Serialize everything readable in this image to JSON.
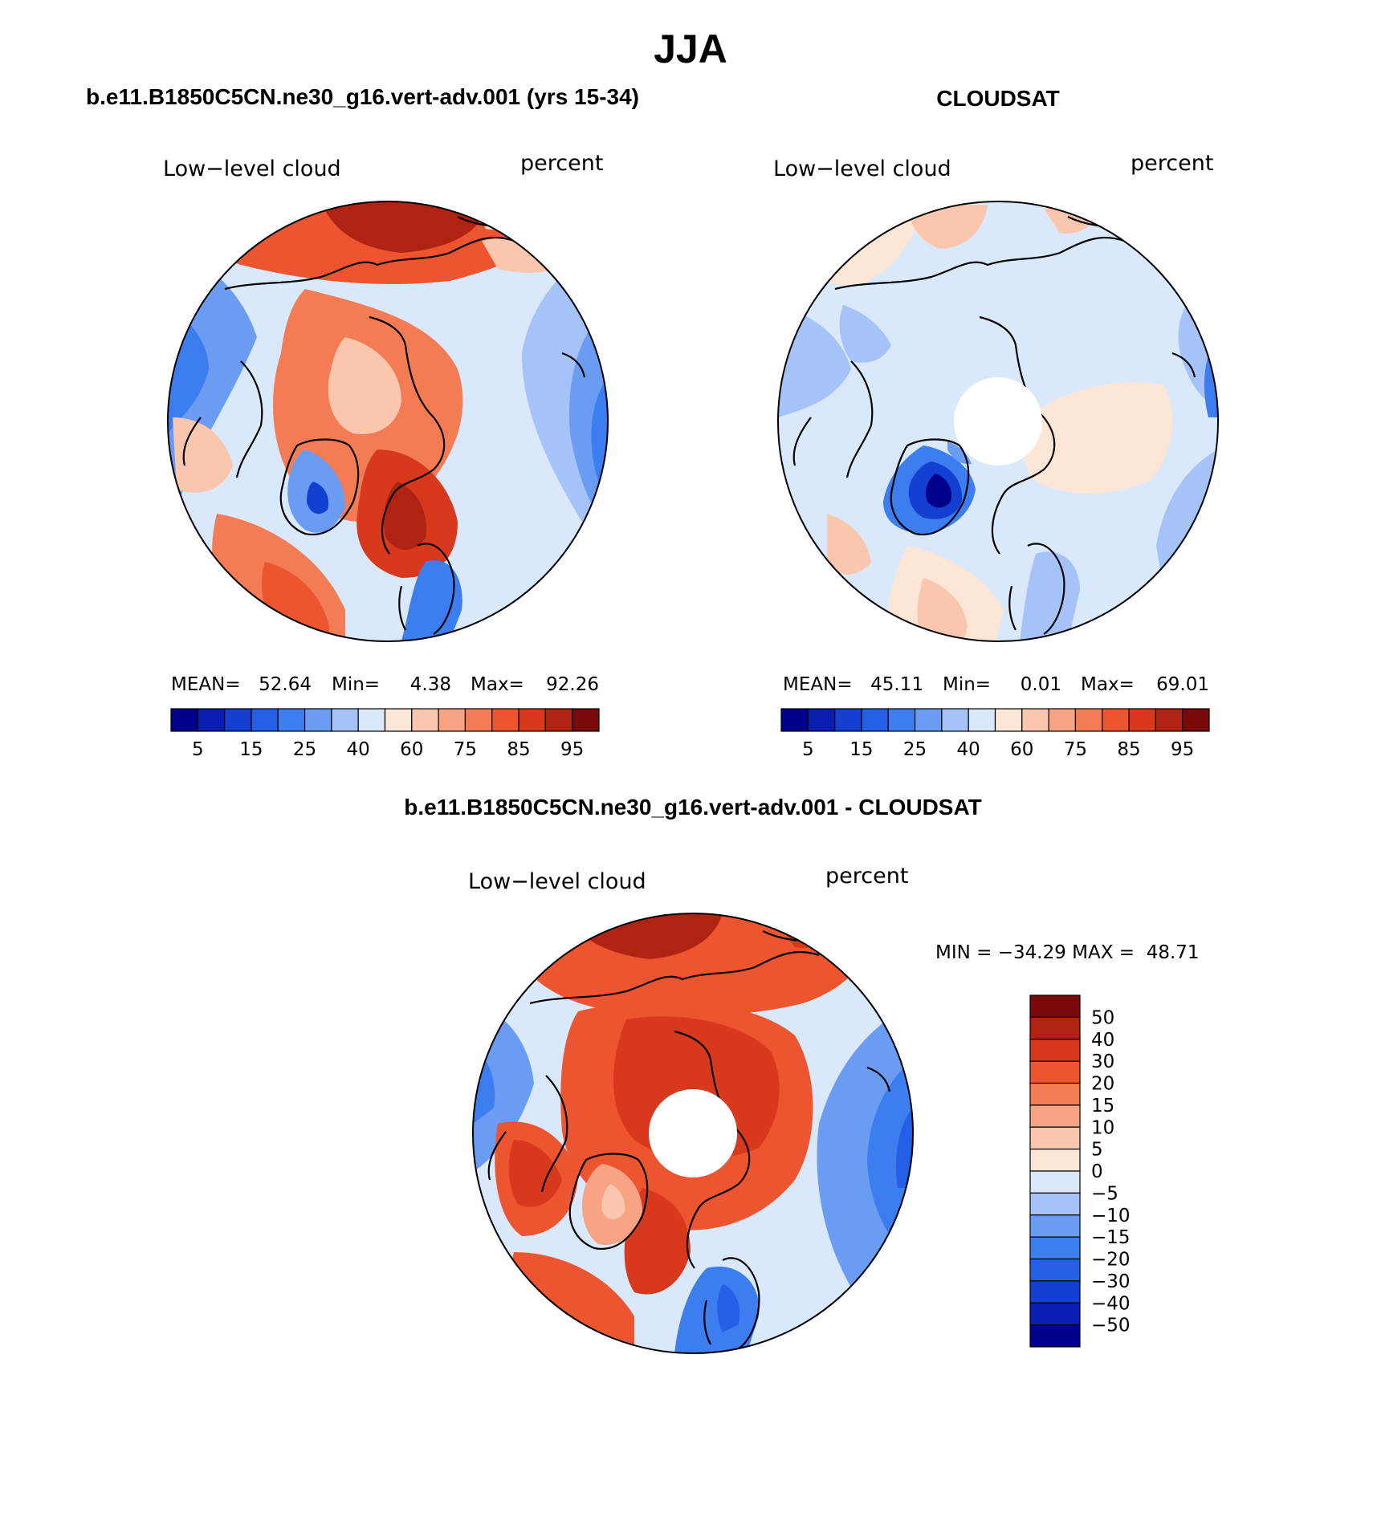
{
  "title": "JJA",
  "panels": [
    {
      "id": "model",
      "heading": "b.e11.B1850C5CN.ne30_g16.vert-adv.001 (yrs 15-34)",
      "variable": "Low−level cloud",
      "units": "percent",
      "stats": {
        "mean_label": "MEAN=",
        "mean": "52.64",
        "min_label": "Min=",
        "min": "4.38",
        "max_label": "Max=",
        "max": "92.26"
      },
      "colorbar_labels": [
        "5",
        "15",
        "25",
        "40",
        "60",
        "75",
        "85",
        "95"
      ],
      "polar_hole": false
    },
    {
      "id": "obs",
      "heading": "CLOUDSAT",
      "variable": "Low−level cloud",
      "units": "percent",
      "stats": {
        "mean_label": "MEAN=",
        "mean": "45.11",
        "min_label": "Min=",
        "min": "0.01",
        "max_label": "Max=",
        "max": "69.01"
      },
      "colorbar_labels": [
        "5",
        "15",
        "25",
        "40",
        "60",
        "75",
        "85",
        "95"
      ],
      "polar_hole": true
    },
    {
      "id": "diff",
      "heading": "b.e11.B1850C5CN.ne30_g16.vert-adv.001 - CLOUDSAT",
      "variable": "Low−level cloud",
      "units": "percent",
      "minmax_text": "MIN = −34.29 MAX =  48.71",
      "colorbar_labels": [
        "50",
        "40",
        "30",
        "20",
        "15",
        "10",
        "5",
        "0",
        "−5",
        "−10",
        "−15",
        "−20",
        "−30",
        "−40",
        "−50"
      ],
      "polar_hole": true
    }
  ],
  "palettes": {
    "sequential": [
      "#00008c",
      "#0a1eb4",
      "#1440d2",
      "#2360e6",
      "#3c7df0",
      "#6b9cf4",
      "#a5c3f8",
      "#d9e8fb",
      "#fde6d6",
      "#fbc6ae",
      "#f8a383",
      "#f47c55",
      "#ec5530",
      "#d8381b",
      "#b02212",
      "#7a0a0a"
    ],
    "diverging": [
      "#00008c",
      "#0a1eb4",
      "#1440d2",
      "#2360e6",
      "#3c7df0",
      "#6b9cf4",
      "#a5c3f8",
      "#d9e8fb",
      "#fde6d6",
      "#fbc6ae",
      "#f8a383",
      "#f47c55",
      "#ec5530",
      "#d8381b",
      "#b02212",
      "#7a0a0a"
    ]
  }
}
